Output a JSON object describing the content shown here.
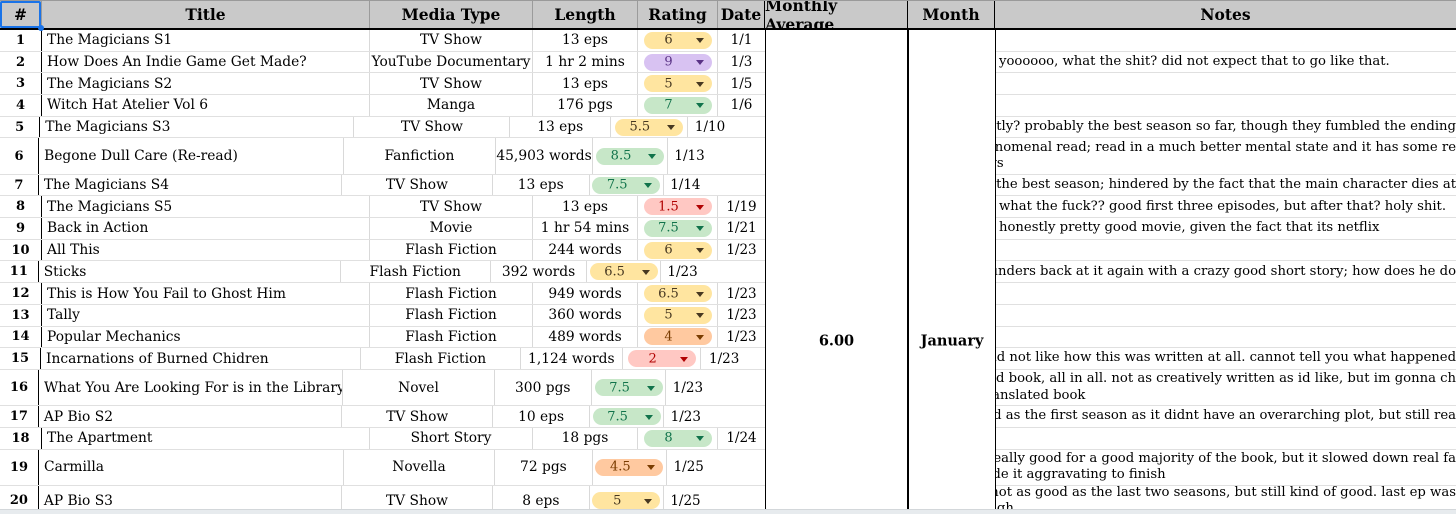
{
  "table": {
    "columns": [
      {
        "key": "num",
        "label": "#"
      },
      {
        "key": "title",
        "label": "Title"
      },
      {
        "key": "media_type",
        "label": "Media Type"
      },
      {
        "key": "length",
        "label": "Length"
      },
      {
        "key": "rating",
        "label": "Rating"
      },
      {
        "key": "date",
        "label": "Date"
      },
      {
        "key": "monthly_average",
        "label": "Monthly Average"
      },
      {
        "key": "month",
        "label": "Month"
      },
      {
        "key": "notes",
        "label": "Notes"
      }
    ],
    "rows": [
      {
        "num": "1",
        "title": "The Magicians S1",
        "media_type": "TV Show",
        "length": "13 eps",
        "rating": {
          "value": "6",
          "color": "yellow"
        },
        "date": "1/1",
        "notes": []
      },
      {
        "num": "2",
        "title": "How Does An Indie Game Get Made?",
        "media_type": "YouTube Documentary",
        "length": "1 hr 2 mins",
        "rating": {
          "value": "9",
          "color": "purple"
        },
        "date": "1/3",
        "notes": [
          "yoooooo, what the shit? did not expect that to go like that."
        ]
      },
      {
        "num": "3",
        "title": "The Magicians S2",
        "media_type": "TV Show",
        "length": "13 eps",
        "rating": {
          "value": "5",
          "color": "yellow"
        },
        "date": "1/5",
        "notes": []
      },
      {
        "num": "4",
        "title": "Witch Hat Atelier Vol 6",
        "media_type": "Manga",
        "length": "176 pgs",
        "rating": {
          "value": "7",
          "color": "green"
        },
        "date": "1/6",
        "notes": []
      },
      {
        "num": "5",
        "title": "The Magicians S3",
        "media_type": "TV Show",
        "length": "13 eps",
        "rating": {
          "value": "5.5",
          "color": "yellow"
        },
        "date": "1/10",
        "notes": [
          "honestly? probably the best season so far, though they fumbled the ending"
        ]
      },
      {
        "num": "6",
        "title": "Begone Dull Care (Re-read)",
        "media_type": "Fanfiction",
        "length": "45,903 words",
        "rating": {
          "value": "8.5",
          "color": "green"
        },
        "date": "1/13",
        "notes": [
          "still a phenomenal read; read in a much better mental state and it has some re",
          "take-aways"
        ]
      },
      {
        "num": "7",
        "title": "The Magicians S4",
        "media_type": "TV Show",
        "length": "13 eps",
        "rating": {
          "value": "7.5",
          "color": "green"
        },
        "date": "1/14",
        "notes": [
          "absolutely the best season; hindered by the fact that the main character dies at"
        ]
      },
      {
        "num": "8",
        "title": "The Magicians S5",
        "media_type": "TV Show",
        "length": "13 eps",
        "rating": {
          "value": "1.5",
          "color": "red"
        },
        "date": "1/19",
        "notes": [
          "what the fuck?? good first three episodes, but after that? holy shit."
        ]
      },
      {
        "num": "9",
        "title": "Back in Action",
        "media_type": "Movie",
        "length": "1 hr 54 mins",
        "rating": {
          "value": "7.5",
          "color": "green"
        },
        "date": "1/21",
        "notes": [
          "honestly pretty good movie, given the fact that its netflix"
        ]
      },
      {
        "num": "10",
        "title": "All This",
        "media_type": "Flash Fiction",
        "length": "244 words",
        "rating": {
          "value": "6",
          "color": "yellow"
        },
        "date": "1/23",
        "notes": []
      },
      {
        "num": "11",
        "title": "Sticks",
        "media_type": "Flash Fiction",
        "length": "392 words",
        "rating": {
          "value": "6.5",
          "color": "yellow"
        },
        "date": "1/23",
        "notes": [
          "George Saunders back at it again with a crazy good short story; how does he do"
        ]
      },
      {
        "num": "12",
        "title": "This is How You Fail to Ghost Him",
        "media_type": "Flash Fiction",
        "length": "949 words",
        "rating": {
          "value": "6.5",
          "color": "yellow"
        },
        "date": "1/23",
        "notes": []
      },
      {
        "num": "13",
        "title": "Tally",
        "media_type": "Flash Fiction",
        "length": "360 words",
        "rating": {
          "value": "5",
          "color": "yellow"
        },
        "date": "1/23",
        "notes": []
      },
      {
        "num": "14",
        "title": "Popular Mechanics",
        "media_type": "Flash Fiction",
        "length": "489 words",
        "rating": {
          "value": "4",
          "color": "orange"
        },
        "date": "1/23",
        "notes": []
      },
      {
        "num": "15",
        "title": "Incarnations of Burned Chidren",
        "media_type": "Flash Fiction",
        "length": "1,124 words",
        "rating": {
          "value": "2",
          "color": "red"
        },
        "date": "1/23",
        "notes": [
          "i did not like how this was written at all. cannot tell you what happened"
        ]
      },
      {
        "num": "16",
        "title": "What You Are Looking For is in the Library",
        "media_type": "Novel",
        "length": "300 pgs",
        "rating": {
          "value": "7.5",
          "color": "green"
        },
        "date": "1/23",
        "notes": [
          "pretty good book, all in all. not as creatively written as id like, but im gonna ch",
          "being a translated book"
        ]
      },
      {
        "num": "17",
        "title": "AP Bio S2",
        "media_type": "TV Show",
        "length": "10 eps",
        "rating": {
          "value": "7.5",
          "color": "green"
        },
        "date": "1/23",
        "notes": [
          "not as good as the first season as it didnt have an overarching plot, but still rea"
        ]
      },
      {
        "num": "18",
        "title": "The Apartment",
        "media_type": "Short Story",
        "length": "18 pgs",
        "rating": {
          "value": "8",
          "color": "green"
        },
        "date": "1/24",
        "notes": []
      },
      {
        "num": "19",
        "title": "Carmilla",
        "media_type": "Novella",
        "length": "72 pgs",
        "rating": {
          "value": "4.5",
          "color": "orange"
        },
        "date": "1/25",
        "notes": [
          "this was really good for a good majority of the book, but it slowed down real fa",
          "which made it aggravating to finish"
        ]
      },
      {
        "num": "20",
        "title": "AP Bio S3",
        "media_type": "TV Show",
        "length": "8 eps",
        "rating": {
          "value": "5",
          "color": "yellow"
        },
        "date": "1/25",
        "notes": [
          "definitely not as good as the last two seasons, but still kind of good. last ep was",
          "trash, though"
        ]
      }
    ]
  },
  "summary": {
    "monthly_average": "6.00",
    "month": "January"
  },
  "chip_colors": {
    "yellow": {
      "bg": "#ffe5a0",
      "text": "#473821"
    },
    "green": {
      "bg": "#c7e7c8",
      "text": "#11734b"
    },
    "purple": {
      "bg": "#d8c2f2",
      "text": "#5a3286"
    },
    "red": {
      "bg": "#ffc8c3",
      "text": "#b10202"
    },
    "orange": {
      "bg": "#ffc9a0",
      "text": "#7a3c00"
    }
  },
  "ui_colors": {
    "header_bg": "#c9c9c9",
    "selection_blue": "#1a73e8",
    "grid_line": "#e0e0e0",
    "column_line": "#d9d9d9",
    "strong_border": "#000000"
  }
}
